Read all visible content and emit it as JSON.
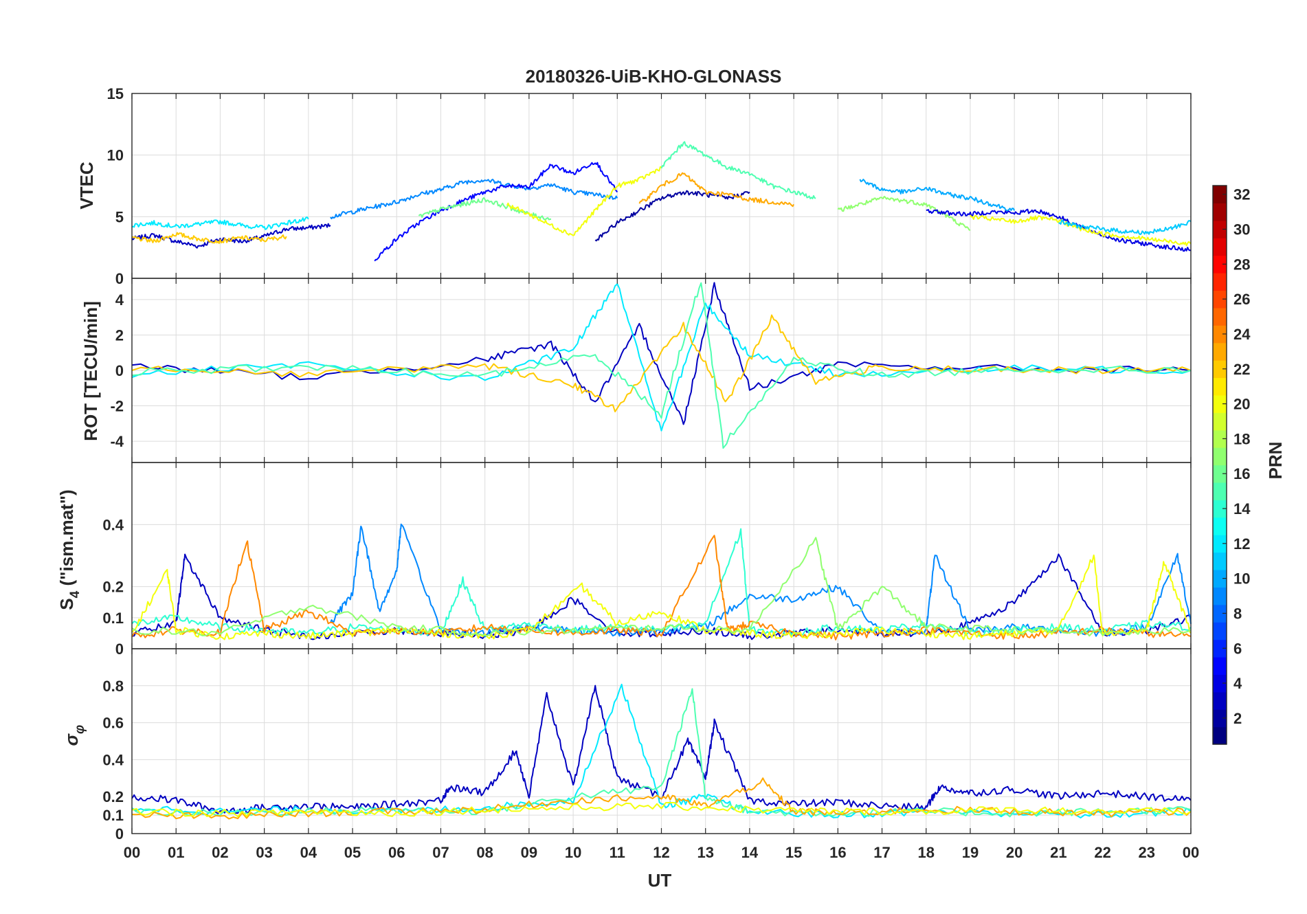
{
  "chart_data": [
    {
      "type": "line",
      "panel": "vtec",
      "title": "20180326-UiB-KHO-GLONASS",
      "ylabel": "VTEC",
      "ylim": [
        0,
        15
      ],
      "yticks": [
        0,
        5,
        10,
        15
      ],
      "xlim": [
        0,
        24
      ],
      "grid": true,
      "series": [
        {
          "prn": 3,
          "x": [
            0,
            0.5,
            1,
            1.5,
            2,
            2.5,
            3,
            3.5,
            4,
            4.5
          ],
          "values": [
            3.2,
            3.5,
            3.0,
            2.6,
            3.2,
            3.0,
            3.4,
            4.0,
            4.1,
            4.3
          ]
        },
        {
          "prn": 12,
          "x": [
            0,
            0.5,
            1,
            1.5,
            2,
            2.5,
            3,
            3.5,
            4
          ],
          "values": [
            4.3,
            4.5,
            4.2,
            4.4,
            4.6,
            4.3,
            4.1,
            4.5,
            4.8
          ]
        },
        {
          "prn": 22,
          "x": [
            0,
            0.5,
            1,
            1.5,
            2,
            2.5,
            3,
            3.5
          ],
          "values": [
            3.3,
            3.0,
            3.6,
            3.2,
            3.0,
            3.3,
            3.1,
            3.4
          ]
        },
        {
          "prn": 9,
          "x": [
            4.5,
            5,
            5.5,
            6,
            6.5,
            7,
            7.5,
            8,
            8.5,
            9,
            9.5,
            10,
            10.5,
            11
          ],
          "values": [
            5.0,
            5.4,
            5.8,
            6.2,
            6.8,
            7.2,
            7.8,
            8.0,
            7.6,
            7.3,
            7.6,
            7.0,
            6.8,
            6.5
          ]
        },
        {
          "prn": 5,
          "x": [
            5.5,
            6,
            6.5,
            7,
            7.5,
            8,
            8.5,
            9,
            9.5,
            10,
            10.5,
            11
          ],
          "values": [
            1.5,
            3.2,
            4.5,
            5.5,
            6.3,
            7.0,
            7.5,
            7.4,
            9.2,
            8.5,
            9.5,
            7.0
          ]
        },
        {
          "prn": 16,
          "x": [
            6.5,
            7,
            7.5,
            8,
            8.5,
            9,
            9.5
          ],
          "values": [
            5.0,
            5.6,
            6.0,
            6.4,
            5.8,
            5.2,
            4.8
          ]
        },
        {
          "prn": 20,
          "x": [
            8.5,
            9,
            9.5,
            10,
            10.5,
            11,
            11.5,
            12
          ],
          "values": [
            6.0,
            5.2,
            4.3,
            3.5,
            5.5,
            7.5,
            8.0,
            9.0
          ]
        },
        {
          "prn": 2,
          "x": [
            10.5,
            11,
            11.5,
            12,
            12.5,
            13,
            13.5,
            14
          ],
          "values": [
            3.0,
            4.5,
            5.5,
            6.5,
            7.0,
            6.8,
            6.5,
            7.0
          ]
        },
        {
          "prn": 15,
          "x": [
            12,
            12.5,
            13,
            13.5,
            14,
            14.5,
            15,
            15.5
          ],
          "values": [
            9.0,
            11.0,
            10.0,
            9.0,
            8.5,
            7.5,
            7.0,
            6.5
          ]
        },
        {
          "prn": 23,
          "x": [
            11.5,
            12,
            12.5,
            13,
            13.5,
            14,
            14.5,
            15
          ],
          "values": [
            6.0,
            7.5,
            8.5,
            7.0,
            6.8,
            6.4,
            6.2,
            6.0
          ]
        },
        {
          "prn": 10,
          "x": [
            16.5,
            17,
            17.5,
            18,
            18.5,
            19,
            19.5,
            20
          ],
          "values": [
            8.0,
            7.2,
            7.0,
            7.3,
            6.8,
            6.5,
            6.0,
            5.5
          ]
        },
        {
          "prn": 17,
          "x": [
            16,
            16.5,
            17,
            17.5,
            18,
            18.5,
            19
          ],
          "values": [
            5.5,
            6.0,
            6.5,
            6.3,
            6.0,
            5.0,
            3.9
          ]
        },
        {
          "prn": 4,
          "x": [
            18,
            18.5,
            19,
            19.5,
            20,
            20.5,
            21,
            21.5,
            22,
            22.5,
            23,
            23.5,
            24
          ],
          "values": [
            5.5,
            5.3,
            5.2,
            5.4,
            5.3,
            5.5,
            5.0,
            4.2,
            3.5,
            3.0,
            2.8,
            2.5,
            2.3
          ]
        },
        {
          "prn": 20,
          "x": [
            19,
            19.5,
            20,
            20.5,
            21,
            21.5,
            22,
            22.5,
            23,
            23.5,
            24
          ],
          "values": [
            5.0,
            4.8,
            4.6,
            4.9,
            4.7,
            4.0,
            3.6,
            3.4,
            3.2,
            3.0,
            2.8
          ]
        },
        {
          "prn": 11,
          "x": [
            21,
            21.5,
            22,
            22.5,
            23,
            23.5,
            24
          ],
          "values": [
            4.6,
            4.2,
            4.0,
            3.8,
            3.7,
            4.0,
            4.6
          ]
        }
      ]
    },
    {
      "type": "line",
      "panel": "rot",
      "ylabel": "ROT [TECU/min]",
      "ylim": [
        -5.2,
        5.2
      ],
      "yticks": [
        -4,
        -2,
        0,
        2,
        4
      ],
      "xlim": [
        0,
        24
      ],
      "grid": true,
      "series": [
        {
          "prn": 3,
          "x": [
            0,
            4,
            8,
            9.5,
            10.5,
            11.5,
            12.5,
            13.2,
            14,
            16,
            20,
            24
          ],
          "values": [
            0.3,
            -0.4,
            0.6,
            1.5,
            -1.8,
            2.5,
            -3.0,
            4.8,
            -1.0,
            0.3,
            0.1,
            0.0
          ]
        },
        {
          "prn": 12,
          "x": [
            0,
            4,
            8,
            10,
            11,
            12,
            13,
            14,
            16,
            20,
            24
          ],
          "values": [
            -0.2,
            0.3,
            -0.5,
            1.2,
            5.0,
            -3.5,
            3.8,
            0.9,
            -0.2,
            0.1,
            0.0
          ]
        },
        {
          "prn": 22,
          "x": [
            0,
            4,
            8,
            10,
            11,
            12.5,
            13.5,
            14.5,
            15.5,
            17,
            20,
            24
          ],
          "values": [
            0.2,
            -0.2,
            0.3,
            -0.8,
            -2.2,
            2.5,
            -1.8,
            3.0,
            -0.6,
            0.2,
            0.0,
            0.0
          ]
        },
        {
          "prn": 15,
          "x": [
            0,
            4,
            8,
            10.5,
            12,
            12.9,
            13.4,
            15,
            17,
            20,
            24
          ],
          "values": [
            -0.1,
            0.2,
            -0.3,
            0.9,
            -2.5,
            5.1,
            -4.2,
            0.6,
            -0.3,
            0.1,
            0.0
          ]
        }
      ]
    },
    {
      "type": "line",
      "panel": "s4",
      "ylabel": "S4 (\"ism.mat\")",
      "ylim": [
        0,
        0.6
      ],
      "yticks": [
        0,
        0.1,
        0.2,
        0.4
      ],
      "xlim": [
        0,
        24
      ],
      "grid": true,
      "series": [
        {
          "prn": 3,
          "x": [
            0,
            1,
            1.2,
            2,
            3,
            4,
            5,
            6,
            7,
            8,
            9,
            10,
            11,
            12,
            13,
            14,
            15,
            16,
            17,
            18,
            19,
            20,
            21,
            22,
            23,
            24
          ],
          "values": [
            0.05,
            0.08,
            0.3,
            0.1,
            0.06,
            0.04,
            0.05,
            0.06,
            0.05,
            0.04,
            0.06,
            0.16,
            0.05,
            0.05,
            0.06,
            0.04,
            0.05,
            0.06,
            0.05,
            0.05,
            0.08,
            0.15,
            0.3,
            0.05,
            0.06,
            0.1
          ]
        },
        {
          "prn": 9,
          "x": [
            4.5,
            5,
            5.2,
            5.6,
            6,
            6.1,
            7,
            8,
            9,
            10,
            11,
            12,
            13,
            14,
            15,
            16,
            17,
            18,
            18.2,
            19,
            20,
            21,
            22,
            23,
            23.7,
            24
          ],
          "values": [
            0.08,
            0.18,
            0.4,
            0.12,
            0.25,
            0.4,
            0.06,
            0.05,
            0.07,
            0.06,
            0.05,
            0.06,
            0.07,
            0.17,
            0.16,
            0.2,
            0.05,
            0.06,
            0.3,
            0.06,
            0.07,
            0.06,
            0.05,
            0.07,
            0.3,
            0.08
          ]
        },
        {
          "prn": 14,
          "x": [
            0,
            1,
            2,
            3,
            4,
            5,
            6,
            7,
            7.5,
            8,
            9,
            10,
            11,
            12,
            13,
            13.8,
            14,
            15,
            16,
            17,
            18,
            19,
            20,
            21,
            22,
            23,
            24
          ],
          "values": [
            0.08,
            0.1,
            0.07,
            0.06,
            0.05,
            0.07,
            0.06,
            0.05,
            0.22,
            0.06,
            0.08,
            0.06,
            0.07,
            0.06,
            0.08,
            0.38,
            0.06,
            0.05,
            0.07,
            0.06,
            0.08,
            0.05,
            0.06,
            0.07,
            0.06,
            0.08,
            0.07
          ]
        },
        {
          "prn": 24,
          "x": [
            0,
            1,
            2,
            2.6,
            3,
            4,
            5,
            6,
            7,
            8,
            9,
            10,
            11,
            12,
            13.2,
            13.5,
            14,
            15,
            16,
            17,
            18,
            19,
            20,
            21,
            22,
            23,
            24
          ],
          "values": [
            0.04,
            0.06,
            0.05,
            0.35,
            0.06,
            0.12,
            0.05,
            0.06,
            0.05,
            0.07,
            0.06,
            0.05,
            0.06,
            0.05,
            0.36,
            0.06,
            0.08,
            0.05,
            0.04,
            0.05,
            0.06,
            0.05,
            0.04,
            0.05,
            0.06,
            0.05,
            0.04
          ]
        },
        {
          "prn": 20,
          "x": [
            0,
            0.8,
            1,
            2,
            3,
            4,
            5,
            6,
            7,
            8,
            9,
            10.2,
            11,
            12,
            13,
            14,
            15,
            16,
            17,
            18,
            19,
            20,
            21,
            21.8,
            22,
            23,
            23.4,
            24
          ],
          "values": [
            0.05,
            0.25,
            0.06,
            0.04,
            0.05,
            0.04,
            0.05,
            0.06,
            0.05,
            0.04,
            0.06,
            0.2,
            0.08,
            0.12,
            0.06,
            0.05,
            0.04,
            0.05,
            0.06,
            0.05,
            0.04,
            0.05,
            0.06,
            0.3,
            0.05,
            0.06,
            0.28,
            0.05
          ]
        },
        {
          "prn": 17,
          "x": [
            0,
            2,
            4,
            6,
            8,
            10,
            12,
            14,
            15.5,
            16,
            17,
            18,
            20,
            22,
            24
          ],
          "values": [
            0.06,
            0.05,
            0.14,
            0.07,
            0.05,
            0.06,
            0.07,
            0.06,
            0.35,
            0.06,
            0.2,
            0.07,
            0.06,
            0.05,
            0.06
          ]
        }
      ]
    },
    {
      "type": "line",
      "panel": "sigma_phi",
      "ylabel": "σ φ",
      "ylim": [
        0,
        1
      ],
      "yticks": [
        0,
        0.1,
        0.2,
        0.4,
        0.6,
        0.8
      ],
      "xlim": [
        0,
        24
      ],
      "grid": true,
      "series": [
        {
          "prn": 3,
          "x": [
            0,
            1,
            2,
            3,
            4,
            5,
            6,
            7,
            7.2,
            8,
            8.7,
            9,
            9.4,
            10,
            10.5,
            11,
            12,
            12.6,
            13,
            13.2,
            14,
            15,
            16,
            17,
            18,
            18.3,
            19,
            20,
            21,
            22,
            23,
            24
          ],
          "values": [
            0.2,
            0.18,
            0.12,
            0.14,
            0.15,
            0.14,
            0.16,
            0.18,
            0.25,
            0.22,
            0.45,
            0.2,
            0.75,
            0.25,
            0.8,
            0.3,
            0.2,
            0.5,
            0.3,
            0.6,
            0.18,
            0.16,
            0.17,
            0.15,
            0.14,
            0.25,
            0.22,
            0.24,
            0.2,
            0.22,
            0.2,
            0.18
          ]
        },
        {
          "prn": 12,
          "x": [
            0,
            2,
            4,
            6,
            8,
            10,
            11.1,
            12,
            13,
            14,
            16,
            18,
            20,
            22,
            24
          ],
          "values": [
            0.14,
            0.12,
            0.13,
            0.12,
            0.14,
            0.18,
            0.8,
            0.15,
            0.2,
            0.12,
            0.1,
            0.12,
            0.11,
            0.1,
            0.12
          ]
        },
        {
          "prn": 15,
          "x": [
            0,
            2,
            4,
            6,
            8,
            10,
            12,
            12.7,
            13,
            14,
            16,
            18,
            20,
            22,
            24
          ],
          "values": [
            0.12,
            0.11,
            0.12,
            0.13,
            0.12,
            0.2,
            0.25,
            0.78,
            0.2,
            0.12,
            0.11,
            0.12,
            0.11,
            0.12,
            0.13
          ]
        },
        {
          "prn": 23,
          "x": [
            0,
            2,
            4,
            6,
            8,
            10,
            12,
            13,
            14.3,
            15,
            16,
            18,
            20,
            22,
            24
          ],
          "values": [
            0.1,
            0.09,
            0.11,
            0.12,
            0.13,
            0.18,
            0.2,
            0.15,
            0.28,
            0.12,
            0.11,
            0.13,
            0.12,
            0.11,
            0.12
          ]
        },
        {
          "prn": 20,
          "x": [
            0,
            2,
            4,
            6,
            8,
            10,
            12,
            14,
            16,
            18,
            20,
            22,
            24
          ],
          "values": [
            0.12,
            0.11,
            0.12,
            0.11,
            0.13,
            0.14,
            0.15,
            0.13,
            0.12,
            0.12,
            0.13,
            0.12,
            0.12
          ]
        }
      ]
    }
  ],
  "x_axis": {
    "label": "UT",
    "ticks": [
      "00",
      "01",
      "02",
      "03",
      "04",
      "05",
      "06",
      "07",
      "08",
      "09",
      "10",
      "11",
      "12",
      "13",
      "14",
      "15",
      "16",
      "17",
      "18",
      "19",
      "20",
      "21",
      "22",
      "23",
      "00"
    ]
  },
  "colorbar": {
    "label": "PRN",
    "range": [
      1,
      32
    ],
    "ticks": [
      "2",
      "4",
      "6",
      "8",
      "10",
      "12",
      "14",
      "16",
      "18",
      "20",
      "22",
      "24",
      "26",
      "28",
      "30",
      "32"
    ],
    "colormap": "jet"
  },
  "labels": {
    "title": "20180326-UiB-KHO-GLONASS",
    "vtec": "VTEC",
    "rot": "ROT [TECU/min]",
    "s4_main": "S",
    "s4_sub": "4",
    "s4_rest": " (\"ism.mat\")",
    "sigma_main": "σ",
    "sigma_sub": "φ",
    "xlabel": "UT",
    "prn": "PRN"
  }
}
